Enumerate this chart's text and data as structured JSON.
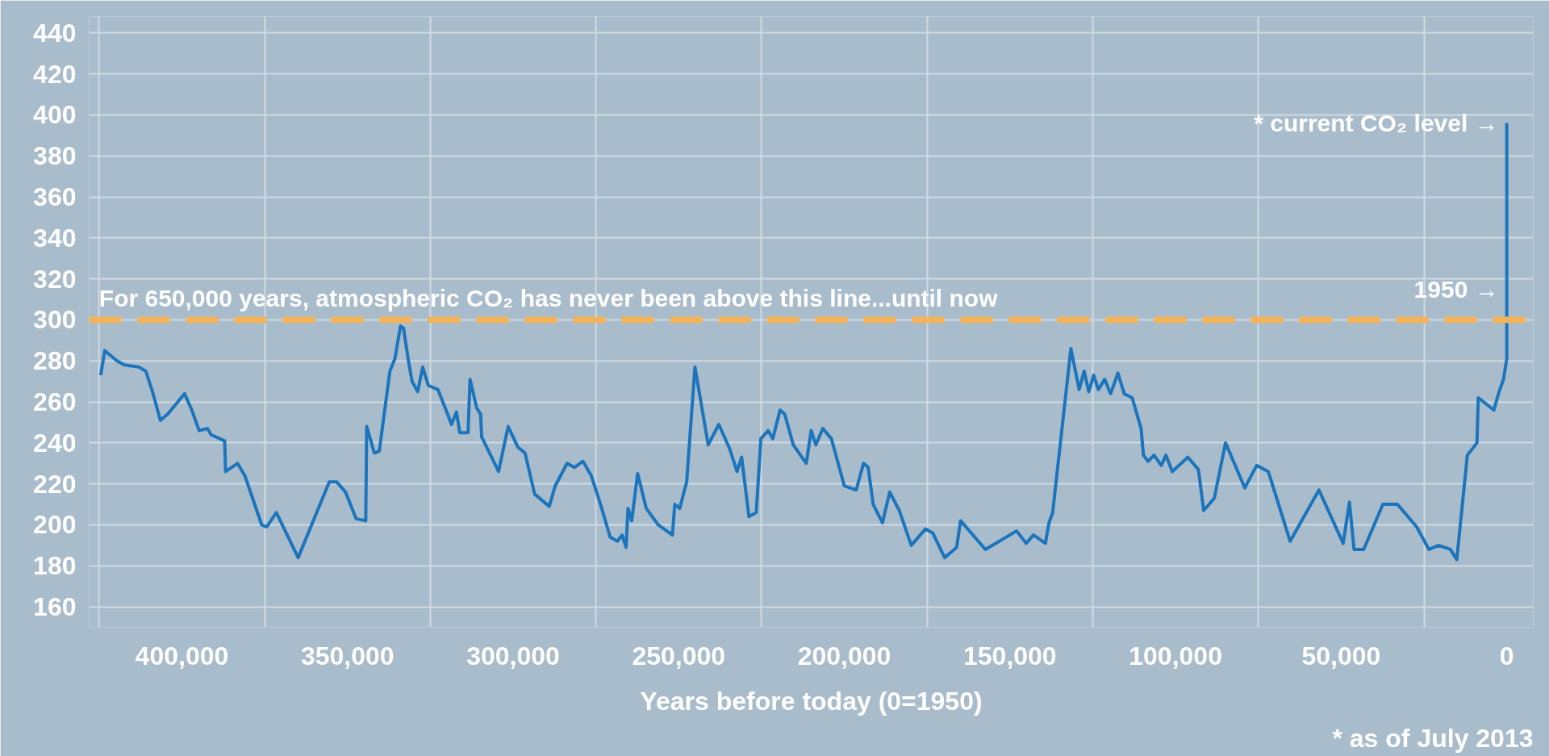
{
  "chart_data": {
    "type": "line",
    "xlabel": "Years before today (0=1950)",
    "xlim": [
      428000,
      -8000
    ],
    "xticks": [
      {
        "value": 425000,
        "label": null
      },
      {
        "value": 400000,
        "label": "400,000"
      },
      {
        "value": 375000,
        "label": null
      },
      {
        "value": 350000,
        "label": "350,000"
      },
      {
        "value": 325000,
        "label": null
      },
      {
        "value": 300000,
        "label": "300,000"
      },
      {
        "value": 275000,
        "label": null
      },
      {
        "value": 250000,
        "label": "250,000"
      },
      {
        "value": 225000,
        "label": null
      },
      {
        "value": 200000,
        "label": "200,000"
      },
      {
        "value": 175000,
        "label": null
      },
      {
        "value": 150000,
        "label": "150,000"
      },
      {
        "value": 125000,
        "label": null
      },
      {
        "value": 100000,
        "label": "100,000"
      },
      {
        "value": 75000,
        "label": null
      },
      {
        "value": 50000,
        "label": "50,000"
      },
      {
        "value": 25000,
        "label": null
      },
      {
        "value": 0,
        "label": "0"
      }
    ],
    "ylim": [
      150,
      448
    ],
    "yticks": [
      160,
      180,
      200,
      220,
      240,
      260,
      280,
      300,
      320,
      340,
      360,
      380,
      400,
      420,
      440
    ],
    "grid": true,
    "ref_lines": [
      {
        "axis": "y",
        "value": 300,
        "label": "For 650,000 years, atmospheric CO₂ has never been above this line...until now",
        "color": "#f2b35a",
        "line_style": "dashed"
      }
    ],
    "annotations": [
      {
        "text": "* current CO₂ level →",
        "x": 0,
        "y": 396
      },
      {
        "text": "1950 →",
        "x": 0,
        "y": 315
      },
      "* as of July 2013"
    ],
    "series": [
      {
        "color": "#1c75bc",
        "x": [
          424500,
          423300,
          419600,
          417400,
          413000,
          410900,
          408700,
          406500,
          404300,
          399200,
          397000,
          394800,
          392300,
          391200,
          387100,
          386800,
          383200,
          381000,
          375900,
          374400,
          371500,
          364900,
          355500,
          353300,
          350600,
          347400,
          344500,
          344200,
          341900,
          340400,
          337200,
          335700,
          334000,
          333100,
          331600,
          330500,
          328800,
          327300,
          325600,
          322700,
          320000,
          318600,
          317100,
          316100,
          313600,
          313000,
          311000,
          309800,
          309500,
          304400,
          301500,
          298600,
          296400,
          293500,
          289100,
          287300,
          283700,
          281500,
          278900,
          276400,
          273600,
          270700,
          268500,
          267100,
          265900,
          265300,
          264200,
          262400,
          259800,
          256200,
          251900,
          251200,
          249700,
          247600,
          245100,
          241100,
          237900,
          234600,
          232400,
          231000,
          228800,
          226600,
          225200,
          223000,
          221600,
          219400,
          218000,
          215400,
          211500,
          210000,
          208600,
          206500,
          203900,
          200000,
          196400,
          194200,
          192800,
          191300,
          188500,
          186300,
          183400,
          179800,
          175500,
          173300,
          169700,
          166100,
          164900,
          157400,
          148000,
          145100,
          142900,
          139300,
          138200,
          137100,
          131600,
          129100,
          127600,
          126200,
          124700,
          123300,
          121400,
          119600,
          117400,
          115500,
          113100,
          110400,
          109700,
          108300,
          106500,
          104300,
          102900,
          101000,
          96300,
          93100,
          91500,
          88300,
          84900,
          79100,
          75500,
          72000,
          65400,
          56700,
          49400,
          47500,
          46100,
          43200,
          37400,
          33000,
          27200,
          23500,
          20600,
          17000,
          15100,
          11900,
          9000,
          8600,
          3900,
          2500,
          1000,
          0,
          0
        ],
        "values": [
          273,
          285,
          280,
          278,
          277,
          275,
          264,
          251,
          254,
          264,
          256,
          246,
          247,
          244,
          241,
          226,
          230,
          224,
          200,
          199,
          206,
          184,
          221,
          221,
          216,
          203,
          202,
          248,
          235,
          236,
          275,
          281,
          297,
          296,
          280,
          270,
          265,
          277,
          268,
          266,
          255,
          249,
          255,
          245,
          245,
          271,
          257,
          254,
          243,
          226,
          248,
          238,
          235,
          215,
          209,
          219,
          230,
          228,
          231,
          224,
          210,
          194,
          192,
          195,
          189,
          208,
          202,
          225,
          208,
          200,
          195,
          210,
          208,
          221,
          277,
          239,
          249,
          237,
          226,
          233,
          204,
          206,
          242,
          246,
          242,
          256,
          254,
          239,
          230,
          246,
          239,
          247,
          242,
          219,
          217,
          230,
          228,
          210,
          201,
          216,
          207,
          190,
          198,
          196,
          184,
          189,
          202,
          188,
          197,
          191,
          195,
          191,
          201,
          206,
          286,
          266,
          275,
          265,
          273,
          266,
          271,
          264,
          274,
          264,
          262,
          247,
          234,
          231,
          234,
          229,
          234,
          226,
          233,
          227,
          207,
          213,
          240,
          218,
          229,
          226,
          192,
          217,
          191,
          211,
          188,
          188,
          210,
          210,
          199,
          188,
          190,
          188,
          183,
          234,
          240,
          262,
          256,
          264,
          271,
          281,
          396
        ]
      }
    ]
  }
}
